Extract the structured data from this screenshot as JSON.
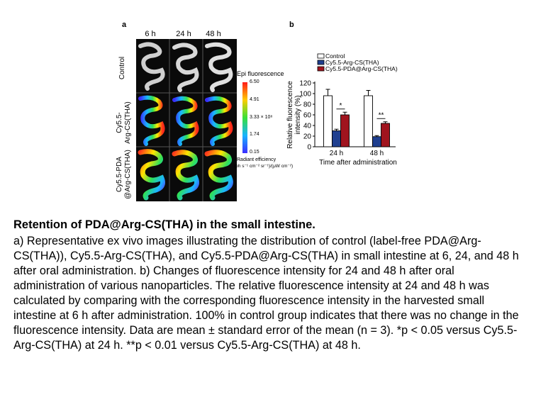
{
  "figure": {
    "panel_a_letter": "a",
    "panel_b_letter": "b",
    "column_labels": [
      "6 h",
      "24 h",
      "48 h"
    ],
    "row_labels": [
      "Control",
      "Cy5.5-\nArg-CS(THA)",
      "Cy5.5-PDA\n@Arg-CS(THA)"
    ],
    "colorbar": {
      "title": "Epi fluorescence",
      "ticks": [
        "6.50",
        "4.91",
        "3.33 × 10⁸",
        "1.74",
        "0.15"
      ],
      "unit_line1": "Radiant efficiency",
      "unit_line2": "(ph s⁻¹ cm⁻² sr⁻¹)/(μW cm⁻²)"
    }
  },
  "chart_data": {
    "type": "bar",
    "categories": [
      "24 h",
      "48 h"
    ],
    "xlabel": "Time after administration",
    "ylabel": "Relative fluorescence intensity (%)",
    "ylim": [
      0,
      120
    ],
    "yticks": [
      0,
      20,
      40,
      60,
      80,
      100,
      120
    ],
    "series": [
      {
        "name": "Control",
        "color": "#ffffff",
        "values": [
          96,
          96
        ],
        "errors": [
          12,
          10
        ]
      },
      {
        "name": "Cy5.5-Arg-CS(THA)",
        "color": "#1f3f8f",
        "values": [
          30,
          19
        ],
        "errors": [
          3,
          2
        ]
      },
      {
        "name": "Cy5.5-PDA@Arg-CS(THA)",
        "color": "#a0141e",
        "values": [
          60,
          44
        ],
        "errors": [
          5,
          3
        ]
      }
    ],
    "significance": [
      "*",
      "**"
    ],
    "legend_position": "top"
  },
  "caption": {
    "title": "Retention of PDA@Arg-CS(THA) in the small intestine.",
    "body": "a) Representative ex vivo images illustrating the distribution of control (label-free PDA@Arg-CS(THA)), Cy5.5-Arg-CS(THA), and Cy5.5-PDA@Arg-CS(THA) in small intestine at 6, 24, and 48 h after oral administration. b) Changes of fluorescence intensity for 24 and 48 h after oral administration of various nanoparticles. The relative fluorescence intensity at 24 and 48 h was calculated by comparing with the corresponding fluorescence intensity in the harvested small intestine at 6 h after administration. 100% in control group indicates that there was no change in the fluorescence intensity. Data are mean ± standard error of the mean (n = 3). *p < 0.05 versus Cy5.5-Arg-CS(THA) at 24 h. **p < 0.01 versus Cy5.5-Arg-CS(THA) at 48 h."
  }
}
